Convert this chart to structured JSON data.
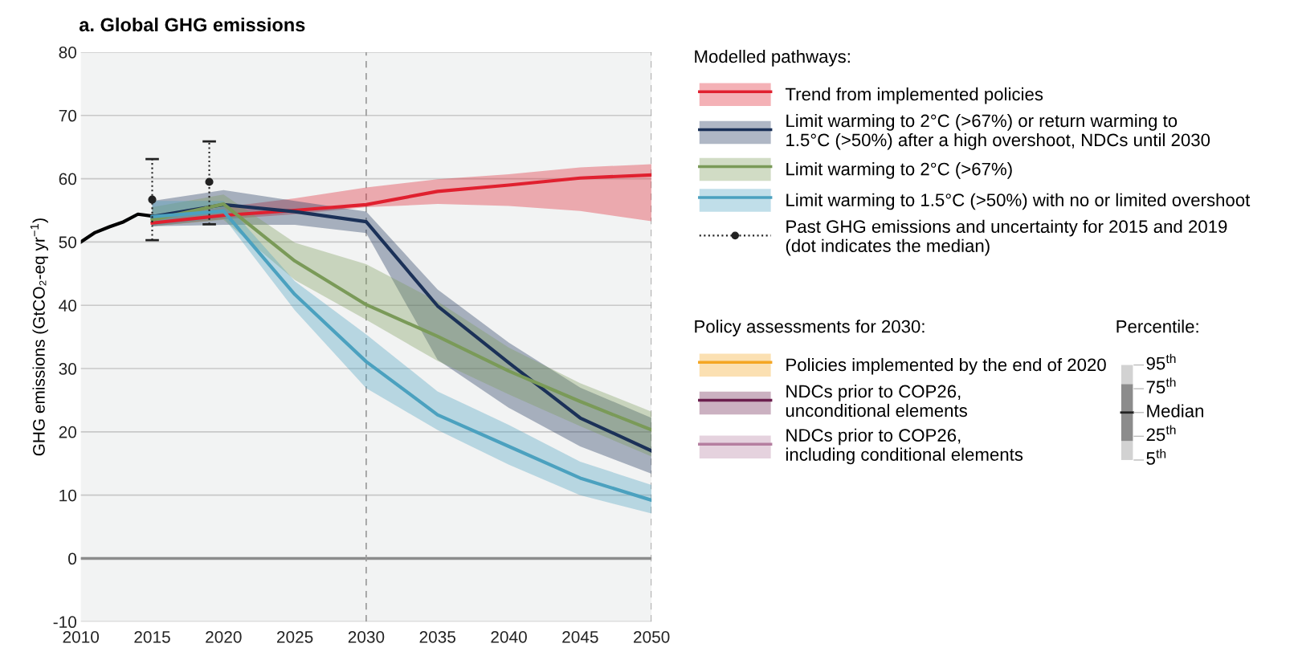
{
  "chart_data": {
    "type": "line",
    "title": "a. Global GHG emissions",
    "ylabel": "GHG emissions (GtCO₂-eq yr$^{−1}$)",
    "xlim": [
      2010,
      2050
    ],
    "xticks": [
      2010,
      2015,
      2020,
      2025,
      2030,
      2035,
      2040,
      2045,
      2050
    ],
    "ylim": [
      -10,
      80
    ],
    "yticks": [
      -10,
      0,
      10,
      20,
      30,
      40,
      50,
      60,
      70,
      80
    ],
    "grid": "y",
    "legend": "right",
    "line_style": "solid",
    "series": [
      {
        "type": "line",
        "color": "#000000",
        "x": [
          2010,
          2011,
          2012,
          2013,
          2014,
          2015
        ],
        "values": [
          50.0,
          51.5,
          52.4,
          53.2,
          54.4,
          54.1
        ]
      },
      {
        "name": "Trend from implemented policies",
        "color": "#e0202f",
        "x": [
          2015,
          2020,
          2025,
          2030,
          2035,
          2040,
          2045,
          2050
        ],
        "values": [
          53.0,
          54.2,
          55.0,
          55.9,
          58.0,
          59.0,
          60.1,
          60.6
        ],
        "lower": [
          52.5,
          53.6,
          54.4,
          55.5,
          56.0,
          55.7,
          54.9,
          53.3
        ],
        "upper": [
          54.0,
          55.5,
          56.9,
          58.6,
          59.9,
          60.7,
          61.8,
          62.3
        ]
      },
      {
        "name": "Limit warming to 2°C (>67%) or return warming to\n1.5°C (>50%) after a high overshoot, NDCs until 2030",
        "color": "#1b3158",
        "x": [
          2015,
          2020,
          2025,
          2030,
          2035,
          2040,
          2045,
          2050
        ],
        "values": [
          54.0,
          55.9,
          54.8,
          53.2,
          39.9,
          30.9,
          22.2,
          17.0
        ],
        "lower": [
          52.5,
          52.7,
          52.7,
          51.4,
          31.4,
          23.8,
          17.7,
          13.4
        ],
        "upper": [
          56.5,
          58.2,
          56.5,
          54.8,
          42.5,
          34.1,
          27.0,
          22.2
        ]
      },
      {
        "name": "Limit warming to 2°C (>67%)",
        "color": "#7a9a58",
        "x": [
          2015,
          2020,
          2025,
          2030,
          2035,
          2040,
          2045,
          2050
        ],
        "values": [
          53.5,
          56.0,
          47.0,
          40.1,
          35.1,
          29.6,
          24.8,
          20.3
        ],
        "lower": [
          52.5,
          53.5,
          44.0,
          37.7,
          31.2,
          25.9,
          20.9,
          16.1
        ],
        "upper": [
          55.5,
          57.5,
          49.9,
          46.5,
          40.6,
          33.3,
          27.7,
          23.2
        ]
      },
      {
        "name": "Limit warming to 1.5°C (>50%) with no or limited overshoot",
        "color": "#4ba1bf",
        "x": [
          2015,
          2020,
          2025,
          2030,
          2035,
          2040,
          2045,
          2050
        ],
        "values": [
          54.0,
          54.9,
          41.7,
          31.1,
          22.7,
          17.7,
          12.7,
          9.2
        ],
        "lower": [
          52.5,
          53.9,
          39.2,
          26.9,
          20.3,
          14.8,
          10.0,
          7.1
        ],
        "upper": [
          56.5,
          56.5,
          43.8,
          35.4,
          26.4,
          21.1,
          15.3,
          11.6
        ]
      },
      {
        "type": "scatter",
        "name": "Past GHG emissions and uncertainty for 2015 and 2019\n(dot indicates the median)",
        "color": "#222222",
        "marker": "circle",
        "line_style": "dotted",
        "x": [
          2015,
          2019
        ],
        "values": [
          56.7,
          59.5
        ],
        "errors": [
          [
            50.3,
            63.1
          ],
          [
            52.8,
            65.9
          ]
        ]
      },
      {
        "name": "Policies implemented by the end of 2020",
        "color": "#f4a623"
      },
      {
        "name": "NDCs prior to COP26,\nunconditional elements",
        "color": "#6b1f4e"
      },
      {
        "name": "NDCs prior to COP26,\nincluding conditional elements",
        "color": "#b57ea0"
      }
    ],
    "ref_lines": [
      {
        "axis": "y",
        "value": 0,
        "color": "#8c8c8c",
        "line_style": "solid"
      },
      {
        "axis": "x",
        "value": 2030,
        "color": "#9a9a9a",
        "line_style": "dashed"
      },
      {
        "axis": "x",
        "value": 2050,
        "color": "#9a9a9a",
        "line_style": "dashed"
      }
    ],
    "annotations": [
      "Modelled pathways:",
      "Policy assessments for 2030:",
      "Percentile:",
      "95$^{th}$",
      "75$^{th}$",
      "Median",
      "25$^{th}$",
      "5$^{th}$"
    ]
  }
}
